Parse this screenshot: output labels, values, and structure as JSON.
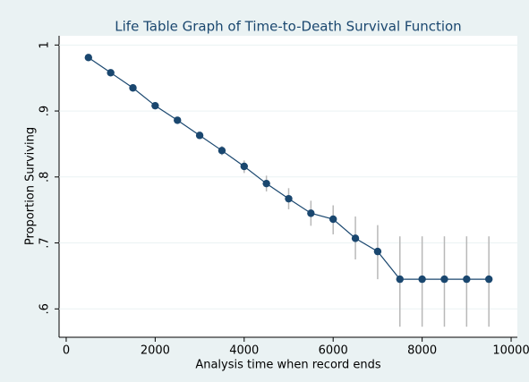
{
  "chart_data": {
    "type": "line",
    "title": "Life Table Graph of Time-to-Death Survival Function",
    "xlabel": "Analysis time when record ends",
    "ylabel": "Proportion Surviving",
    "x": [
      500,
      1000,
      1500,
      2000,
      2500,
      3000,
      3500,
      4000,
      4500,
      5000,
      5500,
      6000,
      6500,
      7000,
      7500,
      8000,
      8500,
      9000,
      9500
    ],
    "values": [
      0.981,
      0.958,
      0.935,
      0.908,
      0.886,
      0.863,
      0.84,
      0.816,
      0.79,
      0.767,
      0.745,
      0.736,
      0.707,
      0.687,
      0.645,
      0.645,
      0.645,
      0.645,
      0.645
    ],
    "ci_lower": [
      0.979,
      0.955,
      0.931,
      0.903,
      0.881,
      0.858,
      0.833,
      0.806,
      0.778,
      0.751,
      0.726,
      0.713,
      0.675,
      0.645,
      0.573,
      0.573,
      0.573,
      0.573,
      0.573
    ],
    "ci_upper": [
      0.983,
      0.961,
      0.939,
      0.913,
      0.891,
      0.868,
      0.847,
      0.825,
      0.802,
      0.783,
      0.764,
      0.757,
      0.74,
      0.727,
      0.71,
      0.71,
      0.71,
      0.71,
      0.71
    ],
    "color": "#1a476f",
    "ci_color": "#b8b8b8",
    "xlim": [
      -160,
      10140
    ],
    "ylim": [
      0.557,
      1.014
    ],
    "xticks": [
      0,
      2000,
      4000,
      6000,
      8000,
      10000
    ],
    "yticks": [
      {
        "value": 0.6,
        "label": ".6"
      },
      {
        "value": 0.7,
        "label": ".7"
      },
      {
        "value": 0.8,
        "label": ".8"
      },
      {
        "value": 0.9,
        "label": ".9"
      },
      {
        "value": 1,
        "label": "1"
      }
    ],
    "grid": true
  }
}
